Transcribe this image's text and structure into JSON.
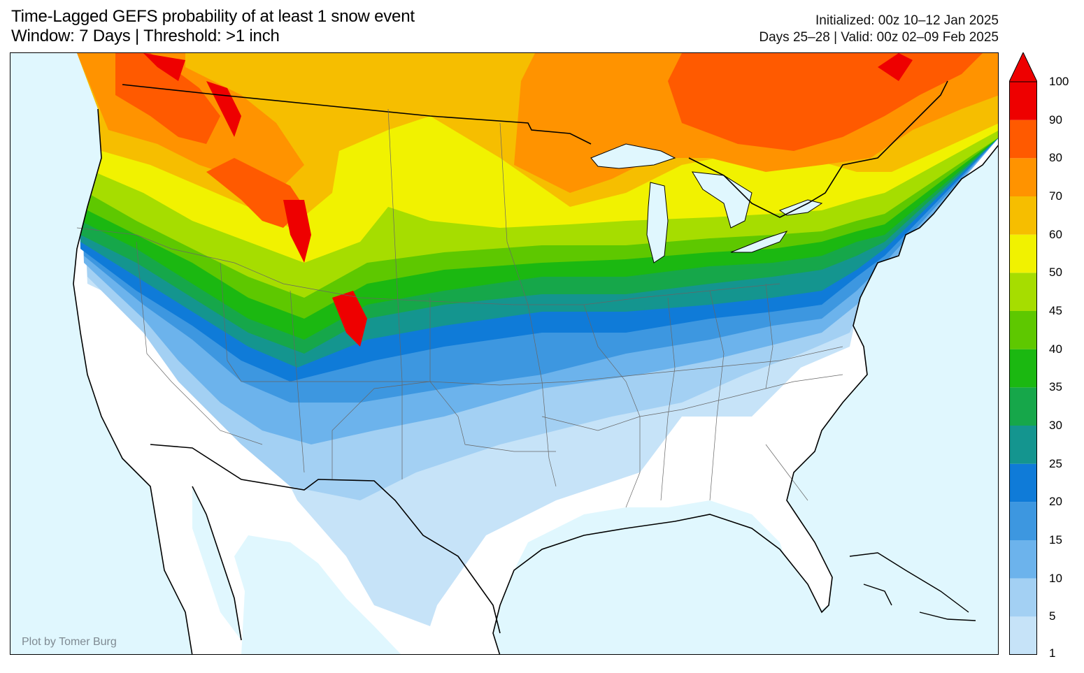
{
  "title": {
    "line1": "Time-Lagged GEFS probability of at least 1 snow event",
    "line2": "Window: 7 Days | Threshold: >1 inch"
  },
  "meta": {
    "line1": "Initialized: 00z 10–12 Jan 2025",
    "line2": "Days 25–28 | Valid: 00z 02–09 Feb 2025"
  },
  "credit": "Plot by Tomer Burg",
  "colorbar": {
    "levels": [
      "1",
      "5",
      "10",
      "15",
      "20",
      "25",
      "30",
      "35",
      "40",
      "45",
      "50",
      "60",
      "70",
      "80",
      "90",
      "100"
    ],
    "colors": [
      "#c6e3f8",
      "#a3d0f3",
      "#6cb3ec",
      "#3d97e0",
      "#0f7bd8",
      "#14958f",
      "#16a74a",
      "#1bb811",
      "#5ec800",
      "#a6dd00",
      "#f1f200",
      "#f6be00",
      "#ff9300",
      "#ff5a00",
      "#ee0000"
    ]
  },
  "map": {
    "ocean_color": "#e0f7fe",
    "land_color": "#ffffff"
  }
}
